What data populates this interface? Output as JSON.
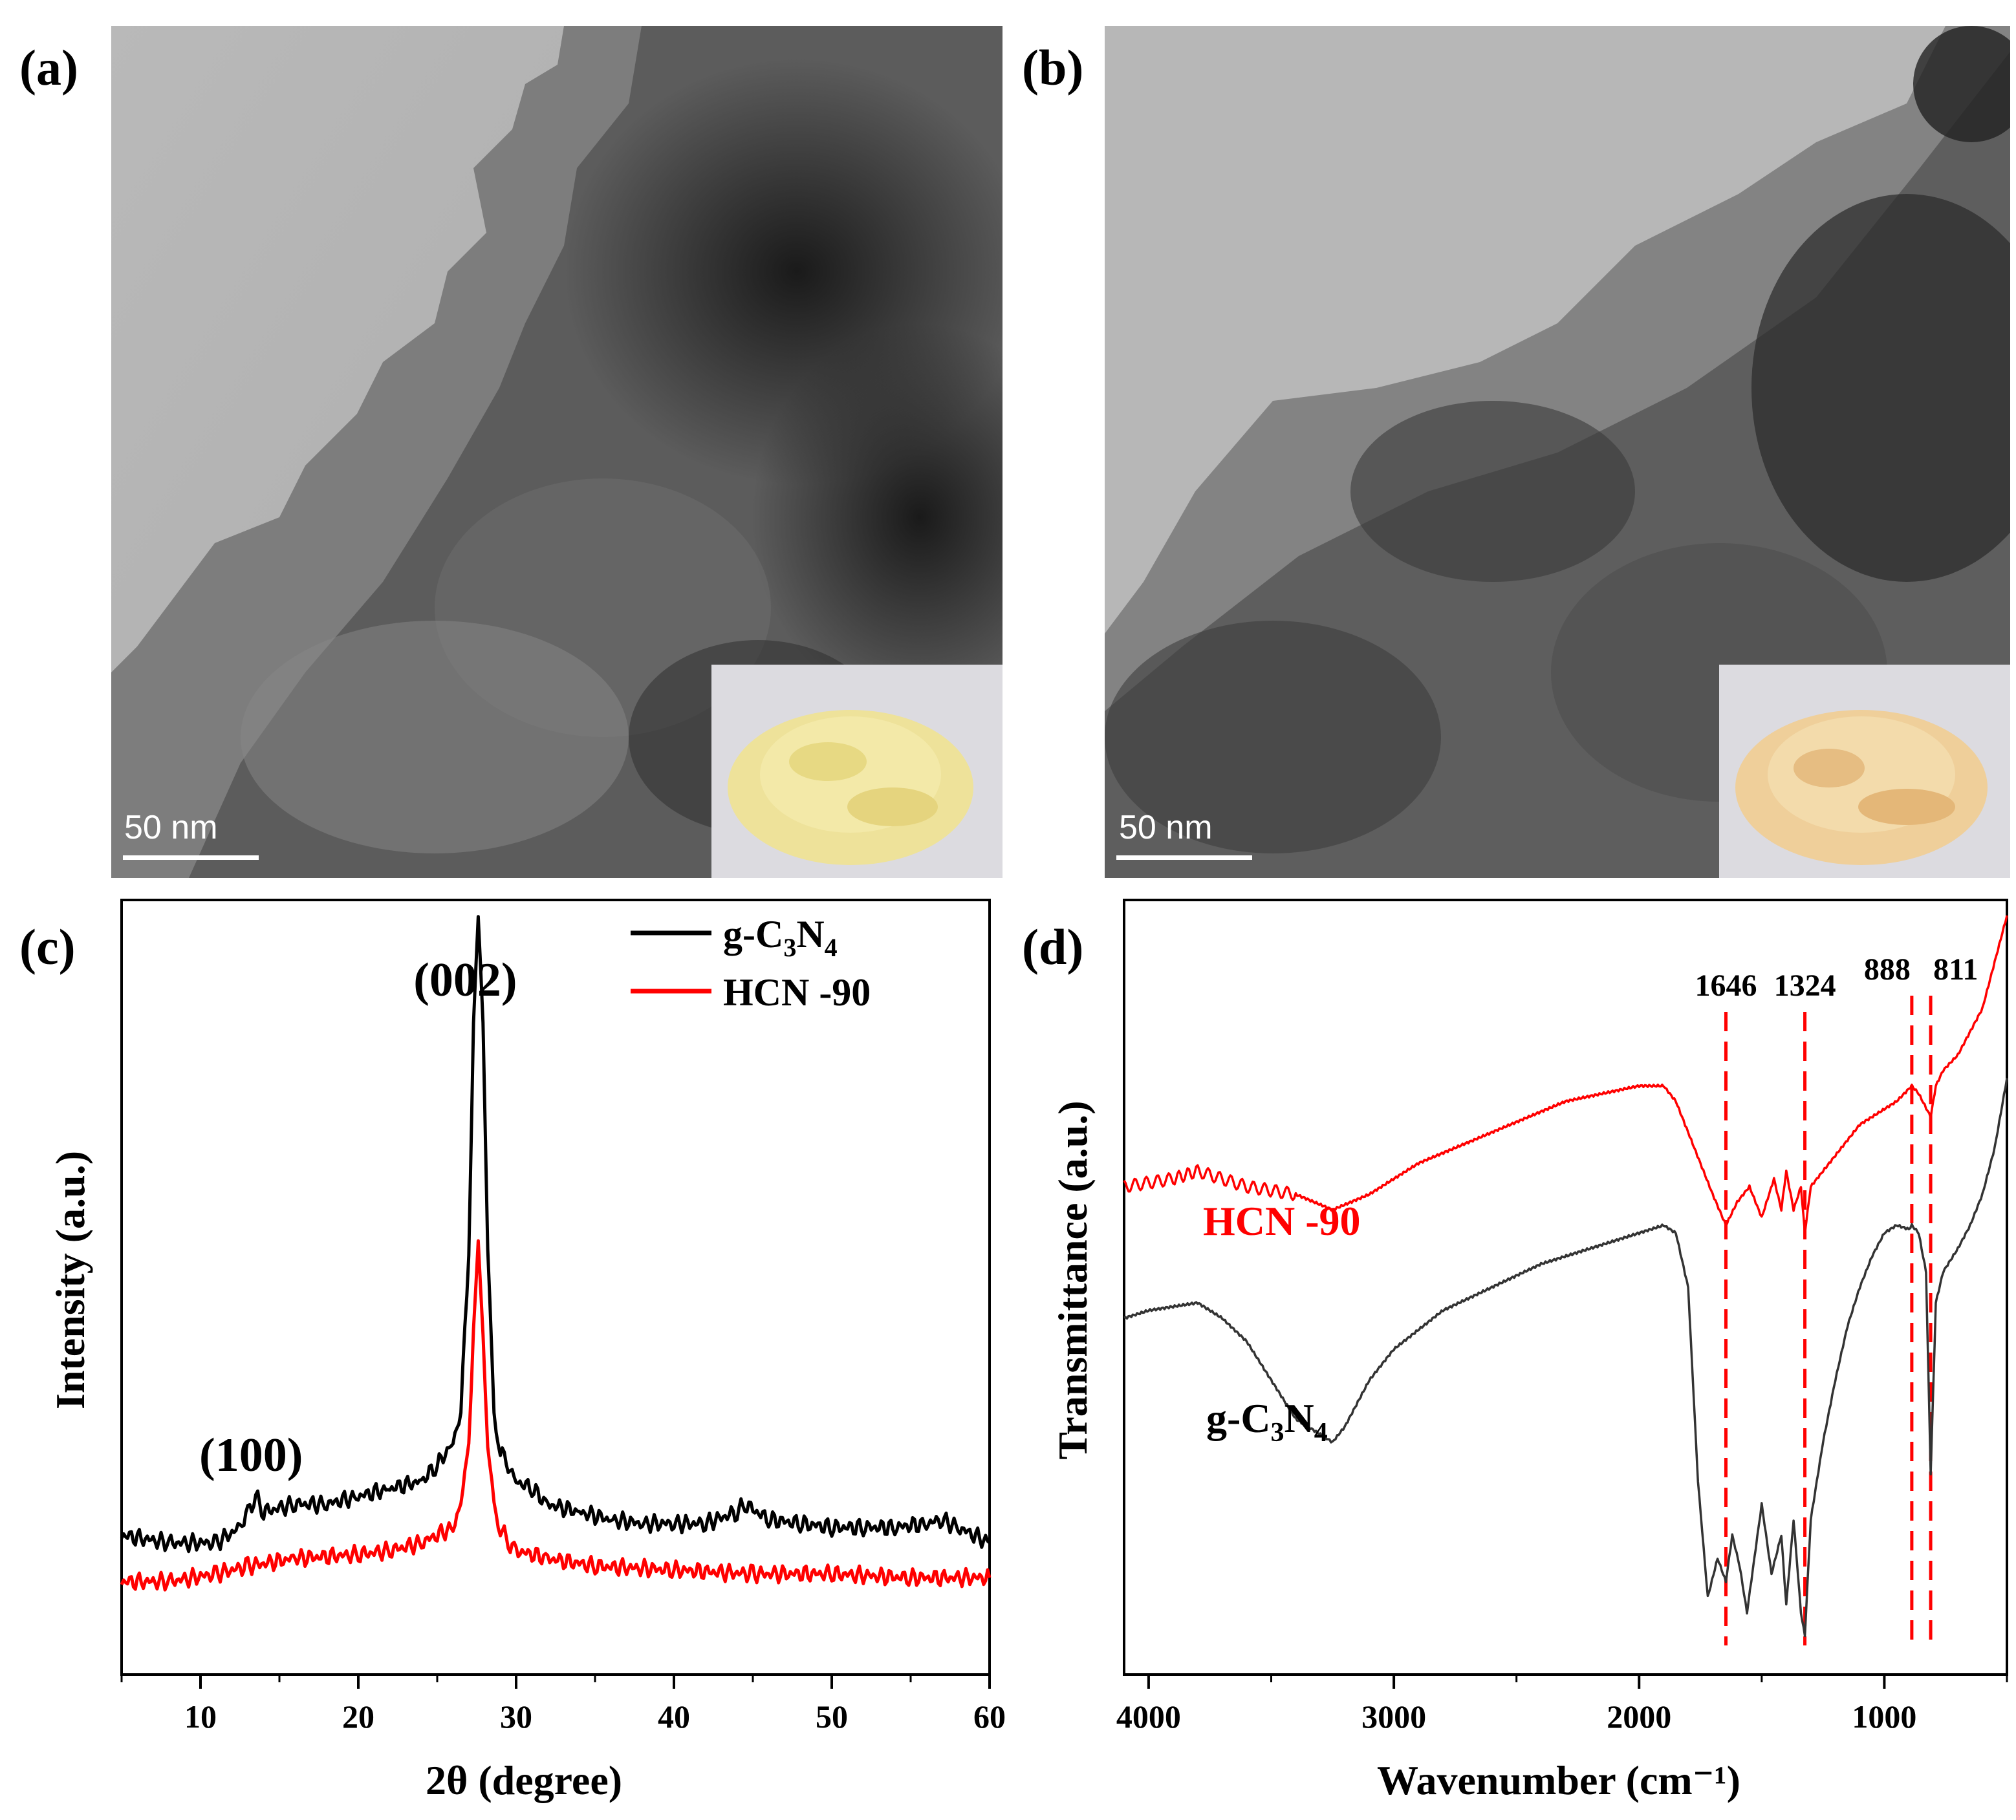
{
  "panels": {
    "a": {
      "label": "(a)",
      "scale_bar": "50 nm"
    },
    "b": {
      "label": "(b)",
      "scale_bar": "50 nm"
    },
    "c": {
      "label": "(c)"
    },
    "d": {
      "label": "(d)"
    }
  },
  "colors": {
    "g_c3n4": "#000000",
    "hcn90": "#ff0000",
    "powder_a": "#eee29a",
    "powder_b": "#efcf9a"
  },
  "chart_data": [
    {
      "panel": "c",
      "type": "line",
      "xlabel": "2θ (degree)",
      "ylabel": "Intensity (a.u.)",
      "xlim": [
        5,
        60
      ],
      "ylim": [
        0,
        100
      ],
      "xticks": [
        10,
        20,
        30,
        40,
        50,
        60
      ],
      "legend": [
        {
          "name": "g-C3N4",
          "base": "g-C",
          "sub1": "3",
          "mid": "N",
          "sub2": "4",
          "color": "#000000"
        },
        {
          "name": "HCN-90",
          "text": "HCN -90",
          "color": "#ff0000"
        }
      ],
      "legend_position": "top-right",
      "annotations": [
        {
          "text": "(002)",
          "x": 27.6
        },
        {
          "text": "(100)",
          "x": 13.0
        }
      ],
      "series": [
        {
          "name": "g-C3N4",
          "color": "#000000",
          "x": [
            5,
            8,
            11,
            12.5,
            13,
            13.5,
            14,
            16,
            18,
            20,
            22,
            24,
            25,
            26,
            26.5,
            27,
            27.3,
            27.6,
            27.9,
            28.2,
            28.6,
            29,
            29.5,
            30,
            31,
            32,
            34,
            36,
            38,
            40,
            42,
            44,
            44.5,
            46,
            48,
            50,
            52,
            54,
            56,
            57,
            58,
            60
          ],
          "y": [
            18,
            17,
            17,
            19,
            21,
            23,
            21,
            22,
            22,
            23,
            24,
            25,
            27,
            30,
            34,
            55,
            85,
            98,
            85,
            55,
            34,
            29,
            27,
            25,
            24,
            22,
            21,
            20,
            19.5,
            19.5,
            19.5,
            21,
            22,
            20,
            19.5,
            19,
            19,
            19,
            19.5,
            20,
            19,
            17
          ]
        },
        {
          "name": "HCN-90",
          "color": "#ff0000",
          "x": [
            5,
            8,
            11,
            13,
            16,
            20,
            22,
            24,
            26,
            26.5,
            27,
            27.3,
            27.6,
            27.9,
            28.2,
            28.6,
            29,
            29.5,
            30,
            32,
            35,
            40,
            45,
            50,
            55,
            60
          ],
          "y": [
            12,
            12,
            13,
            14,
            15,
            15.5,
            16,
            17,
            19,
            22,
            30,
            45,
            56,
            45,
            30,
            22,
            19,
            17,
            16,
            15,
            14,
            13.5,
            13,
            13,
            12.5,
            12.5
          ]
        }
      ]
    },
    {
      "panel": "d",
      "type": "line",
      "xlabel": "Wavenumber (cm⁻¹)",
      "ylabel": "Transmittance (a.u.)",
      "xlim": [
        4100,
        500
      ],
      "ylim": [
        0,
        100
      ],
      "xticks": [
        4000,
        3000,
        2000,
        1000
      ],
      "peaks": [
        {
          "label": "1646",
          "x": 1646
        },
        {
          "label": "1324",
          "x": 1324
        },
        {
          "label": "888",
          "x": 888
        },
        {
          "label": "811",
          "x": 811
        }
      ],
      "series_labels": [
        {
          "name": "HCN-90",
          "text": "HCN -90",
          "color": "#ff0000"
        },
        {
          "name": "g-C3N4",
          "base": "g-C",
          "sub1": "3",
          "mid": "N",
          "sub2": "4",
          "color": "#000000"
        }
      ],
      "series": [
        {
          "name": "HCN-90",
          "color": "#ff0000",
          "x": [
            4100,
            3900,
            3800,
            3600,
            3400,
            3250,
            3100,
            2900,
            2600,
            2300,
            2000,
            1900,
            1850,
            1800,
            1750,
            1700,
            1646,
            1600,
            1550,
            1500,
            1450,
            1420,
            1400,
            1370,
            1340,
            1324,
            1300,
            1250,
            1200,
            1150,
            1100,
            1000,
            950,
            888,
            860,
            811,
            790,
            760,
            700,
            600,
            550,
            500
          ],
          "y": [
            63,
            64,
            65,
            63,
            62,
            60,
            62,
            66,
            70,
            74,
            76,
            76,
            74,
            70,
            66,
            62,
            58,
            61,
            63,
            59,
            64,
            60,
            65,
            60,
            63,
            57,
            63,
            65,
            67,
            69,
            71,
            73,
            74,
            76,
            75,
            72,
            76,
            78,
            80,
            86,
            92,
            98
          ]
        },
        {
          "name": "g-C3N4",
          "color": "#333333",
          "x": [
            4100,
            4000,
            3900,
            3800,
            3700,
            3600,
            3500,
            3400,
            3300,
            3250,
            3200,
            3100,
            3000,
            2800,
            2600,
            2400,
            2200,
            2000,
            1900,
            1850,
            1800,
            1760,
            1720,
            1680,
            1646,
            1620,
            1590,
            1560,
            1500,
            1460,
            1420,
            1400,
            1370,
            1340,
            1324,
            1300,
            1250,
            1200,
            1150,
            1100,
            1050,
            1000,
            950,
            900,
            888,
            860,
            830,
            811,
            790,
            760,
            700,
            650,
            600,
            550,
            500
          ],
          "y": [
            46,
            47,
            47.5,
            48,
            46,
            43,
            38,
            33,
            31,
            30,
            32,
            38,
            42,
            47,
            50,
            53,
            55,
            57,
            58,
            57,
            50,
            25,
            10,
            15,
            12,
            18,
            14,
            8,
            22,
            13,
            18,
            9,
            20,
            8,
            5,
            20,
            30,
            38,
            45,
            50,
            54,
            57,
            58,
            57.5,
            58,
            57,
            52,
            26,
            48,
            52,
            55,
            58,
            62,
            68,
            77
          ]
        }
      ]
    }
  ]
}
